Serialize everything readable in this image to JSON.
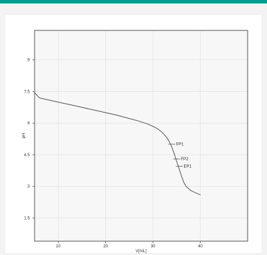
{
  "colors": {
    "accent": "#0a9a8c",
    "background": "#f3f3f3",
    "plot_background": "#f7f7f7",
    "grid": "#dedede",
    "frame": "#555555",
    "curve": "#555555"
  },
  "chart_data": {
    "type": "line",
    "title": "",
    "xlabel": "V[mL]",
    "ylabel": "pH",
    "xlim": [
      5,
      50
    ],
    "ylim": [
      0.4,
      10.4
    ],
    "grid": true,
    "x_ticks": [
      {
        "value": 10,
        "label": "10"
      },
      {
        "value": 20,
        "label": "20"
      },
      {
        "value": 30,
        "label": "30"
      },
      {
        "value": 40,
        "label": "40"
      }
    ],
    "y_ticks": [
      {
        "value": 1.5,
        "label": "1.5"
      },
      {
        "value": 3,
        "label": "3"
      },
      {
        "value": 4.5,
        "label": "4.5"
      },
      {
        "value": 6,
        "label": "6"
      },
      {
        "value": 7.5,
        "label": "7.5"
      },
      {
        "value": 9,
        "label": "9"
      }
    ],
    "series": [
      {
        "x": [
          5,
          6,
          8,
          10,
          12,
          15,
          18,
          20,
          22,
          25,
          27,
          29,
          30,
          31,
          32,
          33,
          33.5,
          34,
          34.5,
          35,
          35.5,
          36,
          36.5,
          37,
          37.5,
          38,
          39,
          40
        ],
        "y": [
          7.45,
          7.2,
          7.1,
          7.0,
          6.9,
          6.75,
          6.6,
          6.5,
          6.4,
          6.22,
          6.1,
          5.95,
          5.85,
          5.73,
          5.55,
          5.3,
          5.1,
          4.85,
          4.55,
          4.2,
          3.85,
          3.5,
          3.2,
          3.0,
          2.9,
          2.8,
          2.7,
          2.6
        ]
      }
    ],
    "annotations": [
      {
        "label": "FP1",
        "x": 34.0,
        "y": 5.0
      },
      {
        "label": "FP2",
        "x": 35.0,
        "y": 4.3
      },
      {
        "label": "EP1",
        "x": 35.6,
        "y": 3.95
      }
    ]
  }
}
